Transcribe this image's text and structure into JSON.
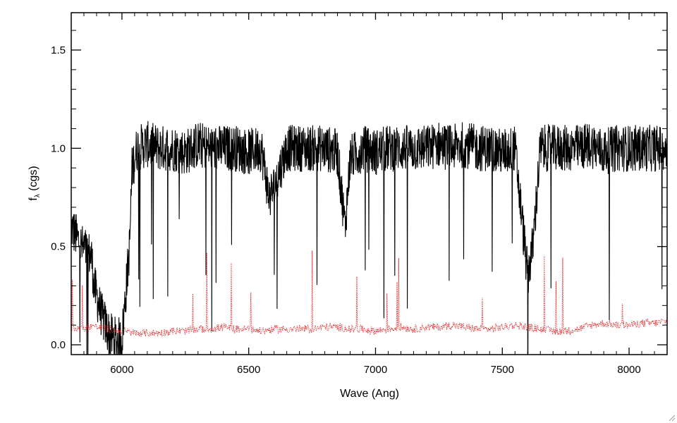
{
  "chart_data": {
    "type": "line",
    "title": "",
    "xlabel": "Wave (Ang)",
    "ylabel": "f",
    "ylabel_sub": "λ",
    "ylabel_suffix": " (cgs)",
    "xlim": [
      5800,
      8150
    ],
    "ylim": [
      -0.05,
      1.69
    ],
    "xticks": [
      6000,
      6500,
      7000,
      7500,
      8000
    ],
    "xtick_labels": [
      "6000",
      "6500",
      "7000",
      "7500",
      "8000"
    ],
    "yticks": [
      0.0,
      0.5,
      1.0,
      1.5
    ],
    "ytick_labels": [
      "0.0",
      "0.5",
      "1.0",
      "1.5"
    ],
    "grid": false,
    "legend": "none",
    "series": [
      {
        "style": "solid",
        "color": "#000000",
        "x": [
          5800,
          5840,
          5880,
          5890,
          5920,
          5950,
          5980,
          6000,
          6030,
          6040,
          6060,
          6100,
          6150,
          6200,
          6250,
          6300,
          6350,
          6400,
          6450,
          6500,
          6550,
          6580,
          6600,
          6650,
          6700,
          6750,
          6800,
          6850,
          6880,
          6900,
          6950,
          7000,
          7050,
          7100,
          7150,
          7200,
          7250,
          7300,
          7350,
          7400,
          7450,
          7500,
          7550,
          7600,
          7620,
          7650,
          7700,
          7750,
          7800,
          7850,
          7900,
          7950,
          8000,
          8050,
          8100,
          8150
        ],
        "values": [
          0.6,
          0.5,
          0.45,
          0.3,
          0.15,
          0.05,
          0.02,
          0.03,
          0.5,
          0.9,
          1.0,
          1.02,
          1.0,
          1.0,
          0.98,
          1.02,
          1.0,
          1.0,
          1.0,
          0.98,
          1.0,
          0.75,
          0.8,
          1.0,
          1.0,
          1.0,
          1.0,
          0.98,
          0.6,
          0.95,
          1.0,
          0.98,
          1.0,
          1.0,
          1.0,
          1.0,
          1.02,
          1.0,
          1.02,
          1.0,
          1.0,
          0.98,
          1.0,
          0.35,
          0.5,
          1.0,
          1.0,
          1.0,
          1.0,
          1.02,
          0.98,
          1.0,
          1.0,
          1.0,
          1.0,
          1.0
        ],
        "noise": 0.12
      },
      {
        "style": "dotted",
        "color": "#e41a1c",
        "x": [
          5800,
          5850,
          5880,
          5900,
          5950,
          6000,
          6050,
          6100,
          6150,
          6200,
          6250,
          6300,
          6350,
          6400,
          6450,
          6500,
          6550,
          6600,
          6650,
          6700,
          6750,
          6800,
          6850,
          6900,
          6950,
          7000,
          7050,
          7100,
          7150,
          7200,
          7250,
          7300,
          7350,
          7400,
          7450,
          7500,
          7550,
          7600,
          7650,
          7700,
          7750,
          7800,
          7850,
          7900,
          7950,
          8000,
          8050,
          8100,
          8150
        ],
        "values": [
          0.09,
          0.08,
          0.1,
          0.09,
          0.08,
          0.07,
          0.06,
          0.06,
          0.06,
          0.07,
          0.07,
          0.08,
          0.08,
          0.09,
          0.08,
          0.08,
          0.07,
          0.08,
          0.08,
          0.08,
          0.08,
          0.09,
          0.09,
          0.08,
          0.08,
          0.07,
          0.08,
          0.09,
          0.08,
          0.09,
          0.09,
          0.1,
          0.09,
          0.08,
          0.08,
          0.09,
          0.1,
          0.09,
          0.08,
          0.07,
          0.07,
          0.08,
          0.1,
          0.11,
          0.1,
          0.1,
          0.11,
          0.11,
          0.12
        ],
        "noise": 0.02
      }
    ]
  }
}
